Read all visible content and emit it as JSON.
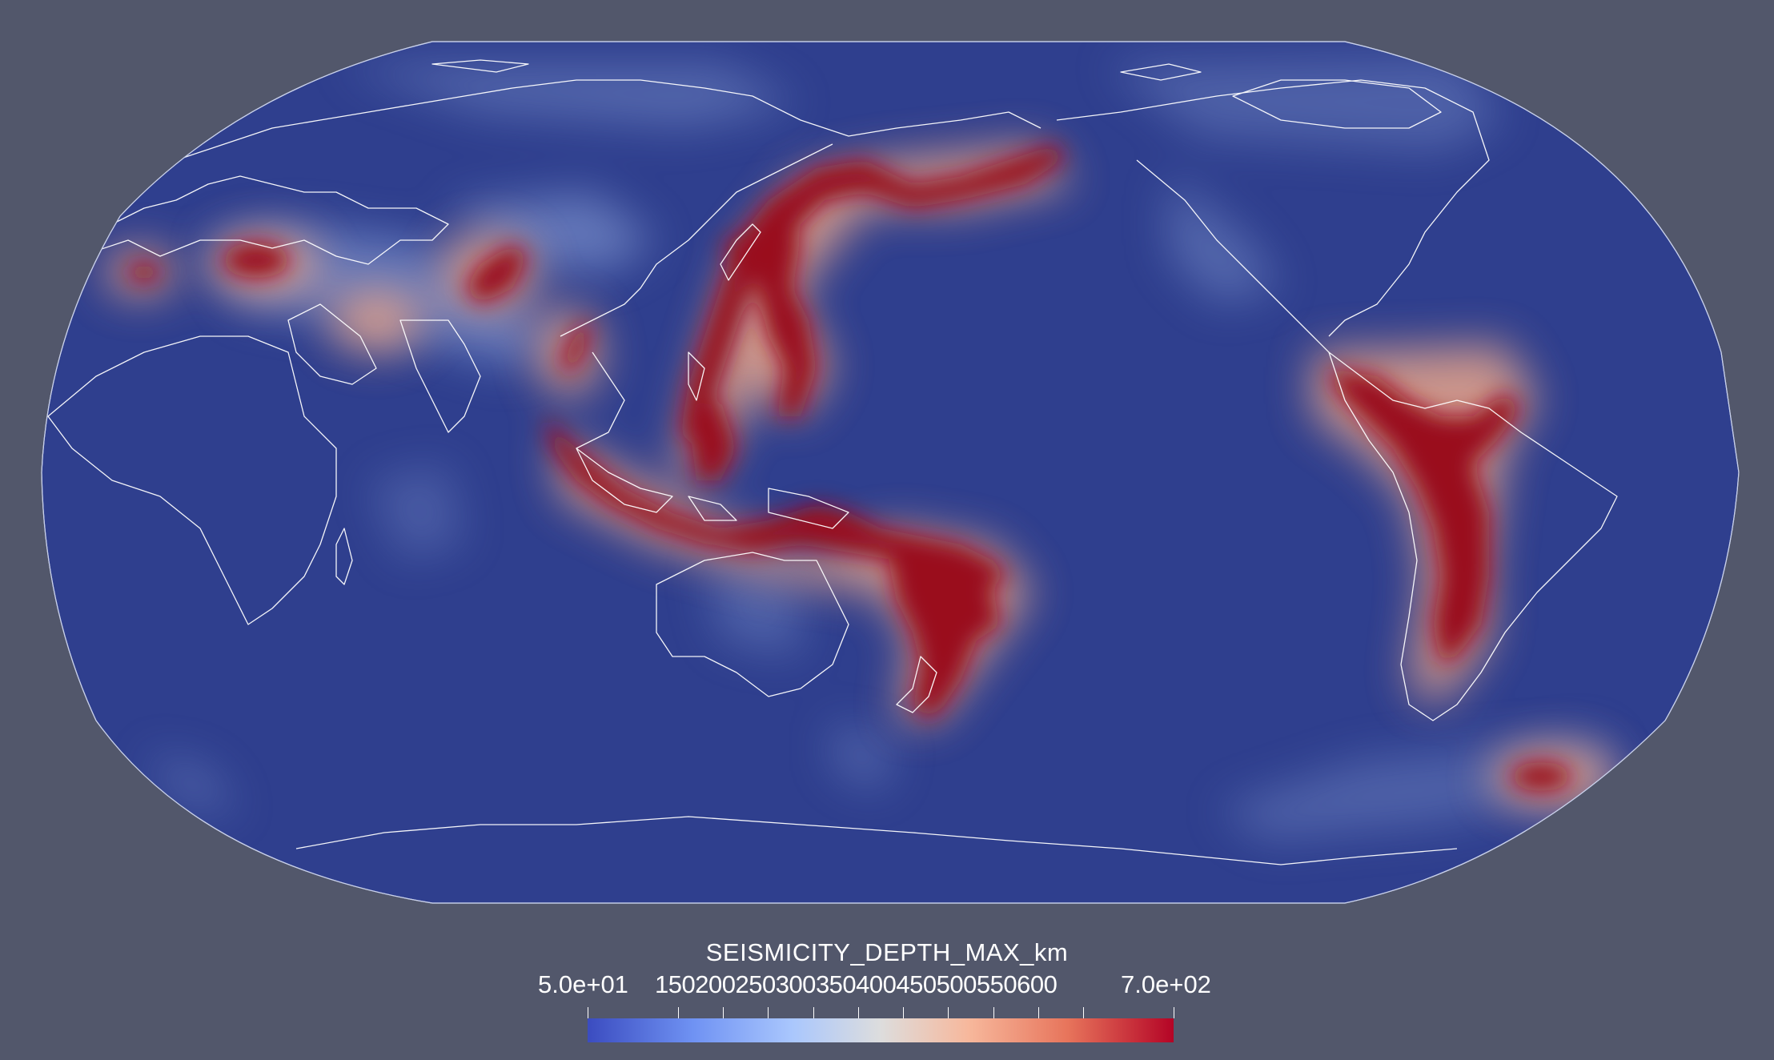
{
  "colorbar": {
    "title": "SEISMICITY_DEPTH_MAX_km",
    "min_label": "5.0e+01",
    "max_label": "7.0e+02",
    "tick_labels": [
      "150",
      "200",
      "250",
      "300",
      "350",
      "400",
      "450",
      "500",
      "550",
      "600"
    ],
    "range": [
      50,
      700
    ],
    "colormap": [
      "#3b4cc0",
      "#6f92f3",
      "#aac7fd",
      "#dddddd",
      "#f7b89c",
      "#e7745b",
      "#b40426"
    ]
  },
  "map": {
    "projection": "Robinson (Pacific-centered)",
    "ocean_color": "#2f3f8e",
    "background_color": "#52576b",
    "coastline_color": "#ffffff"
  }
}
